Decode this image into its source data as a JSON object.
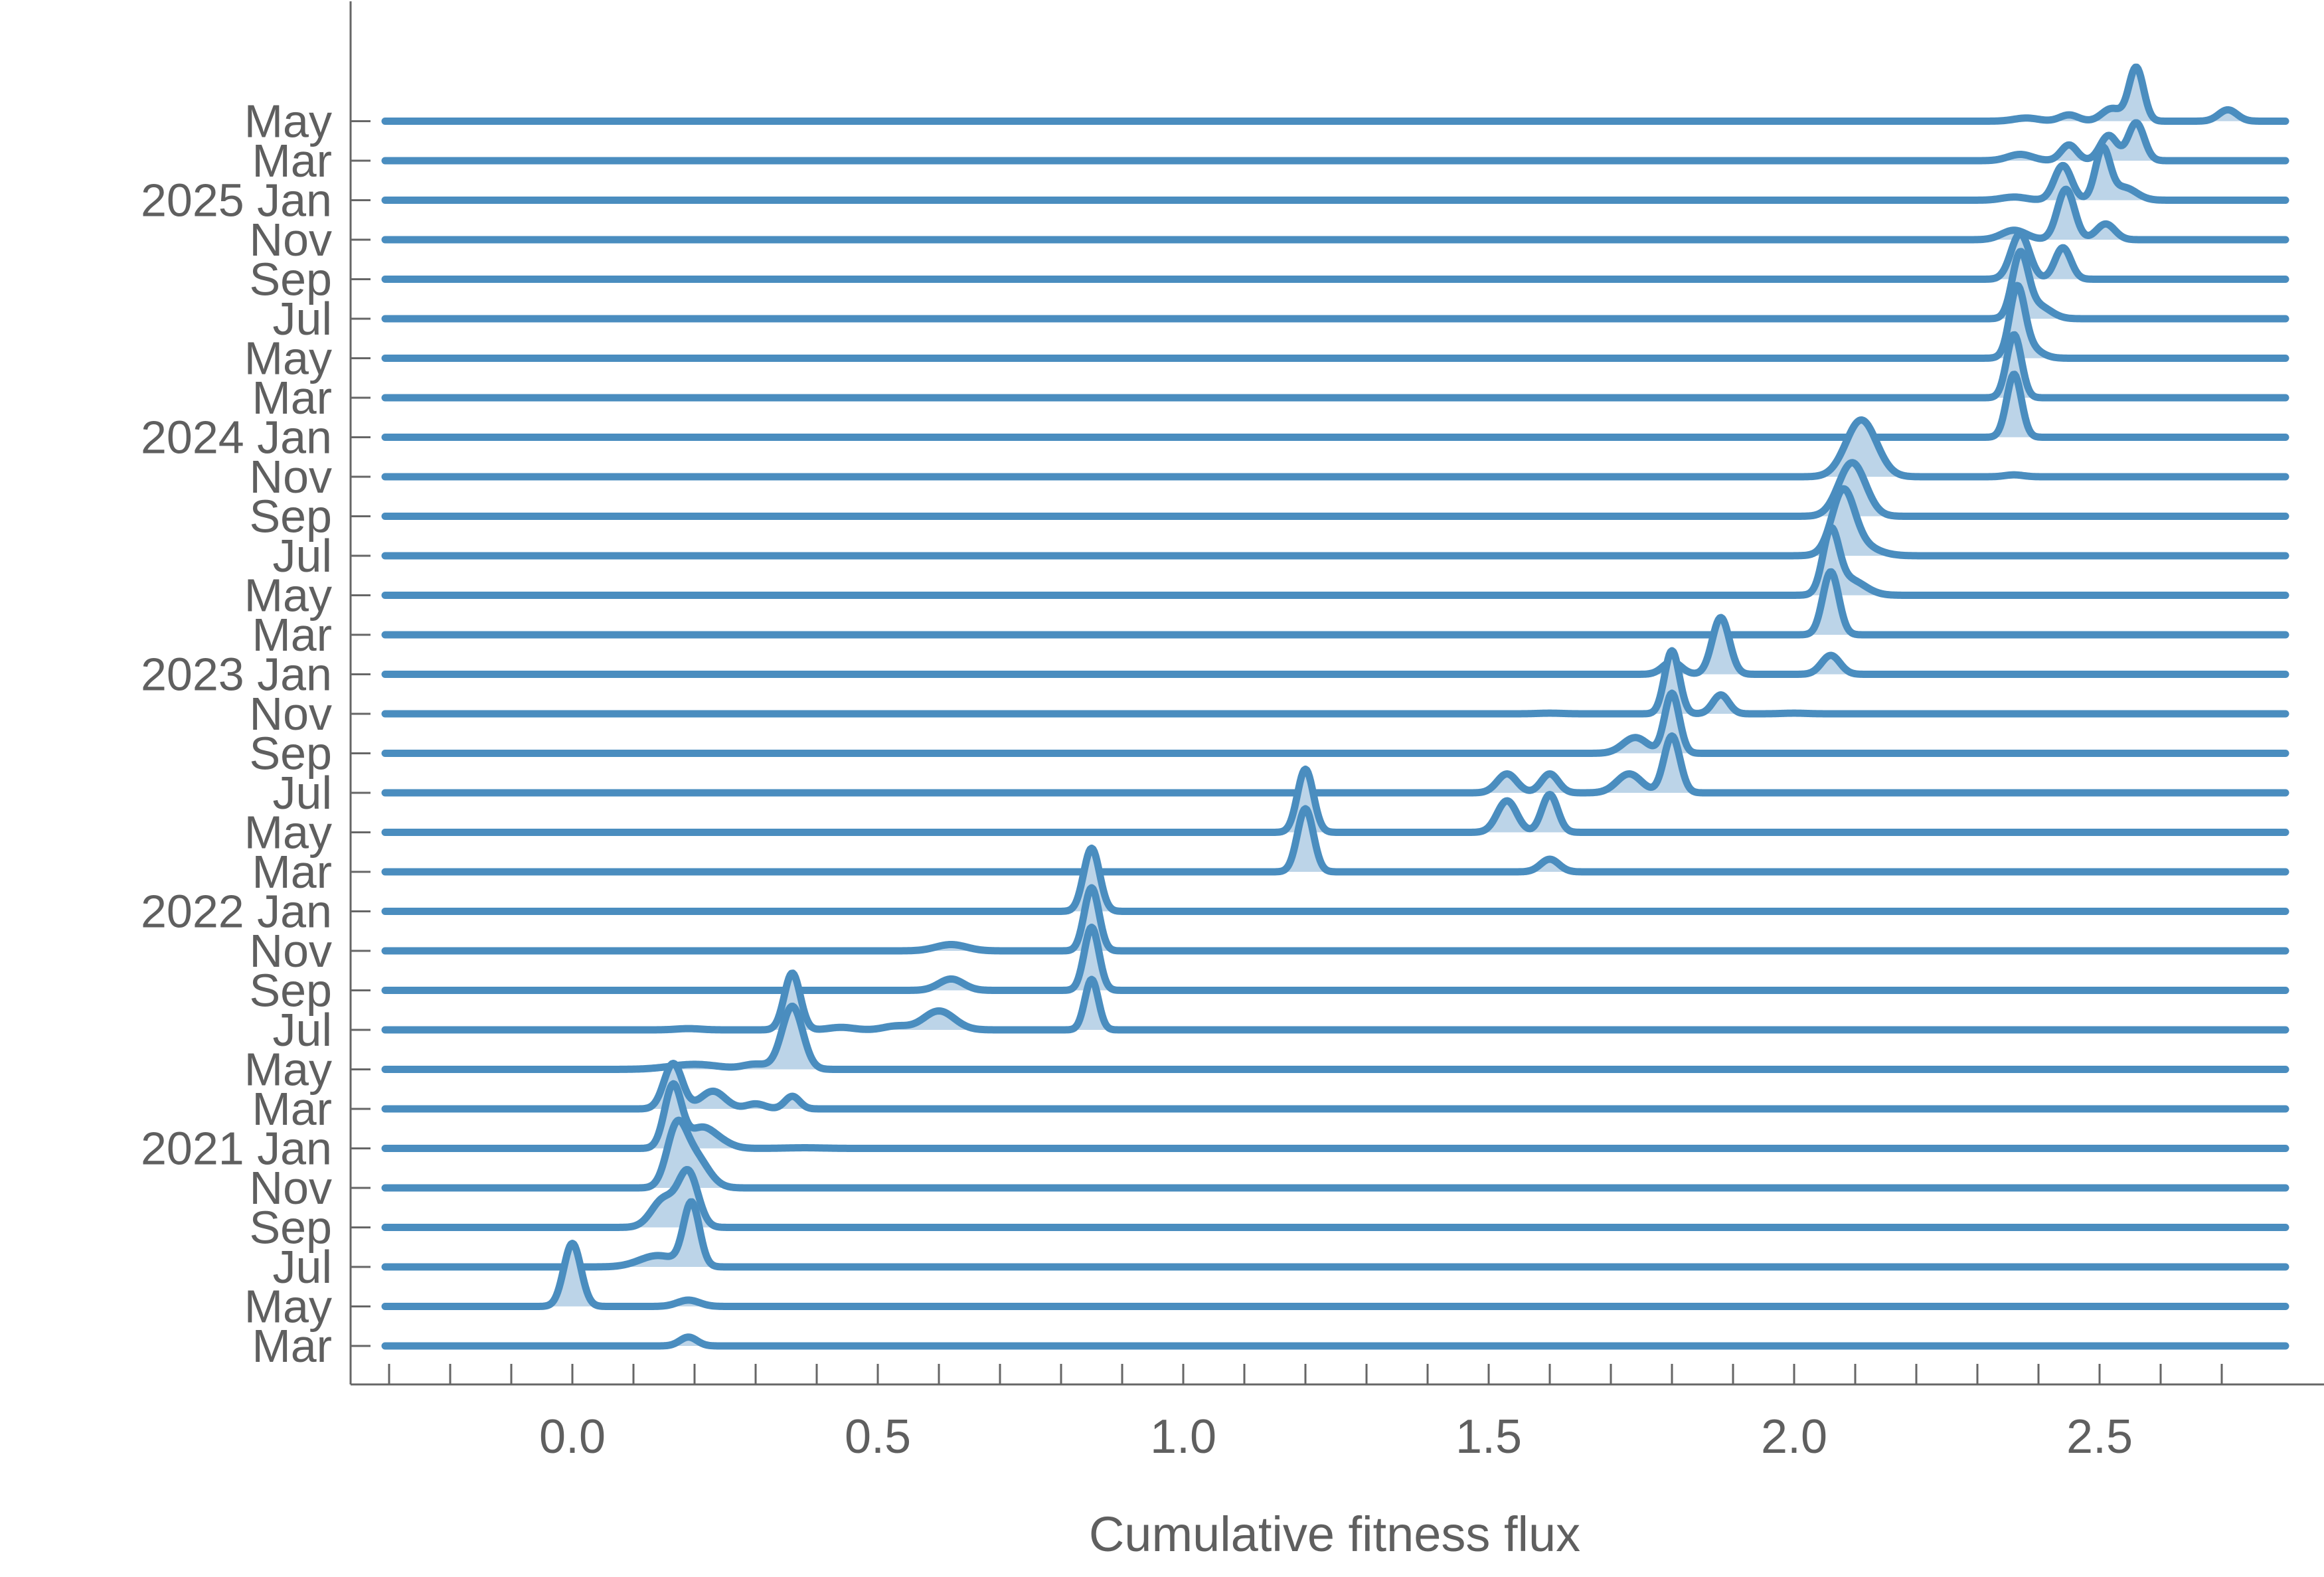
{
  "chart_data": {
    "type": "ridgeline",
    "title": "",
    "xlabel": "Cumulative fitness flux",
    "ylabel": "",
    "xlim": [
      -0.3,
      2.8
    ],
    "xticks_major": [
      0.0,
      0.5,
      1.0,
      1.5,
      2.0,
      2.5
    ],
    "xtick_labels": [
      "0.0",
      "0.5",
      "1.0",
      "1.5",
      "2.0",
      "2.5"
    ],
    "xticks_minor_step": 0.1,
    "grid": false,
    "legend": "none",
    "colors": {
      "line": "#4a8dbf",
      "fill": "#bcd4e8",
      "axis": "#666666",
      "text": "#5f5f5f"
    },
    "rows": [
      {
        "label": "Mar",
        "peaks": [
          [
            0.19,
            0.14,
            0.014
          ]
        ]
      },
      {
        "label": "May",
        "peaks": [
          [
            0.0,
            1.0,
            0.014
          ],
          [
            0.19,
            0.1,
            0.018
          ]
        ]
      },
      {
        "label": "Jul",
        "peaks": [
          [
            0.195,
            1.0,
            0.013
          ],
          [
            0.14,
            0.18,
            0.03
          ]
        ]
      },
      {
        "label": "Sep",
        "peaks": [
          [
            0.19,
            0.85,
            0.016
          ],
          [
            0.15,
            0.45,
            0.02
          ]
        ]
      },
      {
        "label": "Nov",
        "peaks": [
          [
            0.17,
            0.85,
            0.016
          ],
          [
            0.2,
            0.5,
            0.022
          ]
        ]
      },
      {
        "label": "2021 Jan",
        "peaks": [
          [
            0.165,
            1.0,
            0.014
          ],
          [
            0.21,
            0.3,
            0.02
          ],
          [
            0.24,
            0.1,
            0.02
          ],
          [
            0.38,
            0.01,
            0.03
          ]
        ]
      },
      {
        "label": "Mar",
        "peaks": [
          [
            0.165,
            0.72,
            0.015
          ],
          [
            0.23,
            0.28,
            0.02
          ],
          [
            0.3,
            0.08,
            0.015
          ],
          [
            0.36,
            0.2,
            0.012
          ]
        ]
      },
      {
        "label": "May",
        "peaks": [
          [
            0.36,
            1.0,
            0.017
          ],
          [
            0.2,
            0.08,
            0.04
          ],
          [
            0.3,
            0.08,
            0.02
          ]
        ]
      },
      {
        "label": "Jul",
        "peaks": [
          [
            0.36,
            0.9,
            0.013
          ],
          [
            0.19,
            0.02,
            0.02
          ],
          [
            0.44,
            0.04,
            0.02
          ],
          [
            0.6,
            0.3,
            0.025
          ],
          [
            0.53,
            0.06,
            0.02
          ],
          [
            0.85,
            0.8,
            0.011
          ]
        ]
      },
      {
        "label": "Sep",
        "peaks": [
          [
            0.62,
            0.18,
            0.02
          ],
          [
            0.85,
            1.0,
            0.012
          ]
        ]
      },
      {
        "label": "Nov",
        "peaks": [
          [
            0.62,
            0.1,
            0.025
          ],
          [
            0.85,
            1.0,
            0.012
          ]
        ]
      },
      {
        "label": "2022 Jan",
        "peaks": [
          [
            0.85,
            1.0,
            0.013
          ]
        ]
      },
      {
        "label": "Mar",
        "peaks": [
          [
            1.2,
            1.0,
            0.013
          ],
          [
            1.6,
            0.2,
            0.015
          ]
        ]
      },
      {
        "label": "May",
        "peaks": [
          [
            1.2,
            1.0,
            0.013
          ],
          [
            1.53,
            0.5,
            0.016
          ],
          [
            1.6,
            0.6,
            0.013
          ]
        ]
      },
      {
        "label": "Jul",
        "peaks": [
          [
            1.53,
            0.3,
            0.016
          ],
          [
            1.6,
            0.3,
            0.014
          ],
          [
            1.73,
            0.3,
            0.02
          ],
          [
            1.8,
            0.9,
            0.013
          ]
        ]
      },
      {
        "label": "Sep",
        "peaks": [
          [
            1.8,
            0.95,
            0.012
          ],
          [
            1.74,
            0.25,
            0.02
          ]
        ]
      },
      {
        "label": "Nov",
        "peaks": [
          [
            1.8,
            1.0,
            0.012
          ],
          [
            1.88,
            0.3,
            0.013
          ],
          [
            1.6,
            0.01,
            0.02
          ],
          [
            2.0,
            0.01,
            0.02
          ]
        ]
      },
      {
        "label": "2023 Jan",
        "peaks": [
          [
            1.8,
            0.2,
            0.015
          ],
          [
            1.88,
            0.9,
            0.014
          ],
          [
            2.06,
            0.3,
            0.015
          ]
        ]
      },
      {
        "label": "Mar",
        "peaks": [
          [
            2.06,
            1.0,
            0.013
          ]
        ]
      },
      {
        "label": "May",
        "peaks": [
          [
            2.06,
            0.95,
            0.013
          ],
          [
            2.09,
            0.25,
            0.025
          ]
        ]
      },
      {
        "label": "Jul",
        "peaks": [
          [
            2.08,
            0.9,
            0.018
          ],
          [
            2.1,
            0.2,
            0.03
          ]
        ]
      },
      {
        "label": "Sep",
        "peaks": [
          [
            2.095,
            0.85,
            0.022
          ]
        ]
      },
      {
        "label": "Nov",
        "peaks": [
          [
            2.11,
            0.9,
            0.025
          ],
          [
            2.36,
            0.03,
            0.015
          ]
        ]
      },
      {
        "label": "2024 Jan",
        "peaks": [
          [
            2.36,
            1.0,
            0.012
          ]
        ]
      },
      {
        "label": "Mar",
        "peaks": [
          [
            2.36,
            1.0,
            0.012
          ]
        ]
      },
      {
        "label": "May",
        "peaks": [
          [
            2.365,
            1.0,
            0.012
          ],
          [
            2.38,
            0.2,
            0.02
          ]
        ]
      },
      {
        "label": "Jul",
        "peaks": [
          [
            2.37,
            1.0,
            0.013
          ],
          [
            2.4,
            0.2,
            0.02
          ]
        ]
      },
      {
        "label": "Sep",
        "peaks": [
          [
            2.37,
            0.72,
            0.015
          ],
          [
            2.44,
            0.5,
            0.013
          ]
        ]
      },
      {
        "label": "Nov",
        "peaks": [
          [
            2.36,
            0.15,
            0.02
          ],
          [
            2.445,
            0.8,
            0.014
          ],
          [
            2.51,
            0.25,
            0.015
          ]
        ]
      },
      {
        "label": "2025 Jan",
        "peaks": [
          [
            2.36,
            0.05,
            0.02
          ],
          [
            2.44,
            0.55,
            0.014
          ],
          [
            2.505,
            0.8,
            0.012
          ],
          [
            2.54,
            0.2,
            0.02
          ]
        ]
      },
      {
        "label": "Mar",
        "peaks": [
          [
            2.37,
            0.1,
            0.02
          ],
          [
            2.45,
            0.25,
            0.013
          ],
          [
            2.515,
            0.4,
            0.014
          ],
          [
            2.56,
            0.6,
            0.013
          ]
        ]
      },
      {
        "label": "May",
        "peaks": [
          [
            2.38,
            0.05,
            0.02
          ],
          [
            2.45,
            0.1,
            0.015
          ],
          [
            2.52,
            0.2,
            0.016
          ],
          [
            2.56,
            0.85,
            0.012
          ],
          [
            2.71,
            0.18,
            0.015
          ]
        ]
      }
    ]
  }
}
